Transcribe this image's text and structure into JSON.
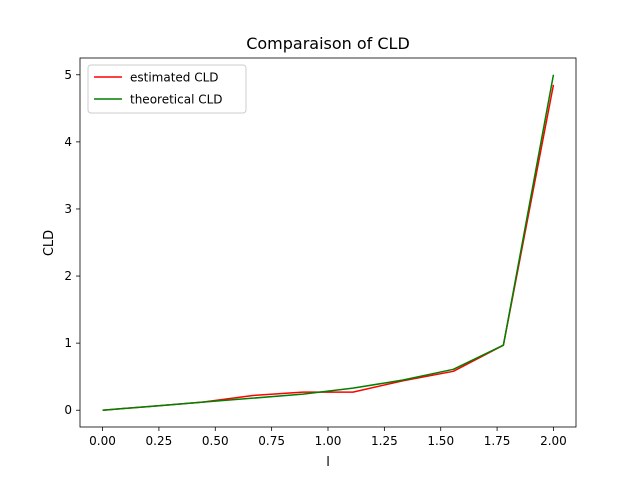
{
  "chart_data": {
    "type": "line",
    "title": "Comparaison of CLD",
    "xlabel": "l",
    "ylabel": "CLD",
    "xlim": [
      -0.1,
      2.1
    ],
    "ylim": [
      -0.25,
      5.25
    ],
    "xticks": [
      0.0,
      0.25,
      0.5,
      0.75,
      1.0,
      1.25,
      1.5,
      1.75,
      2.0
    ],
    "xtick_labels": [
      "0.00",
      "0.25",
      "0.50",
      "0.75",
      "1.00",
      "1.25",
      "1.50",
      "1.75",
      "2.00"
    ],
    "yticks": [
      0,
      1,
      2,
      3,
      4,
      5
    ],
    "ytick_labels": [
      "0",
      "1",
      "2",
      "3",
      "4",
      "5"
    ],
    "grid": false,
    "legend_position": "top-left",
    "series": [
      {
        "name": "estimated CLD",
        "color": "#ff0000",
        "x": [
          0.0,
          0.222,
          0.444,
          0.667,
          0.889,
          1.111,
          1.333,
          1.556,
          1.778,
          2.0
        ],
        "y": [
          0.0,
          0.06,
          0.12,
          0.22,
          0.27,
          0.27,
          0.44,
          0.58,
          0.97,
          4.85
        ]
      },
      {
        "name": "theoretical CLD",
        "color": "#008000",
        "x": [
          0.0,
          0.222,
          0.444,
          0.667,
          0.889,
          1.111,
          1.333,
          1.556,
          1.778,
          2.0
        ],
        "y": [
          0.0,
          0.06,
          0.12,
          0.18,
          0.24,
          0.33,
          0.45,
          0.61,
          0.97,
          5.0
        ]
      }
    ]
  }
}
